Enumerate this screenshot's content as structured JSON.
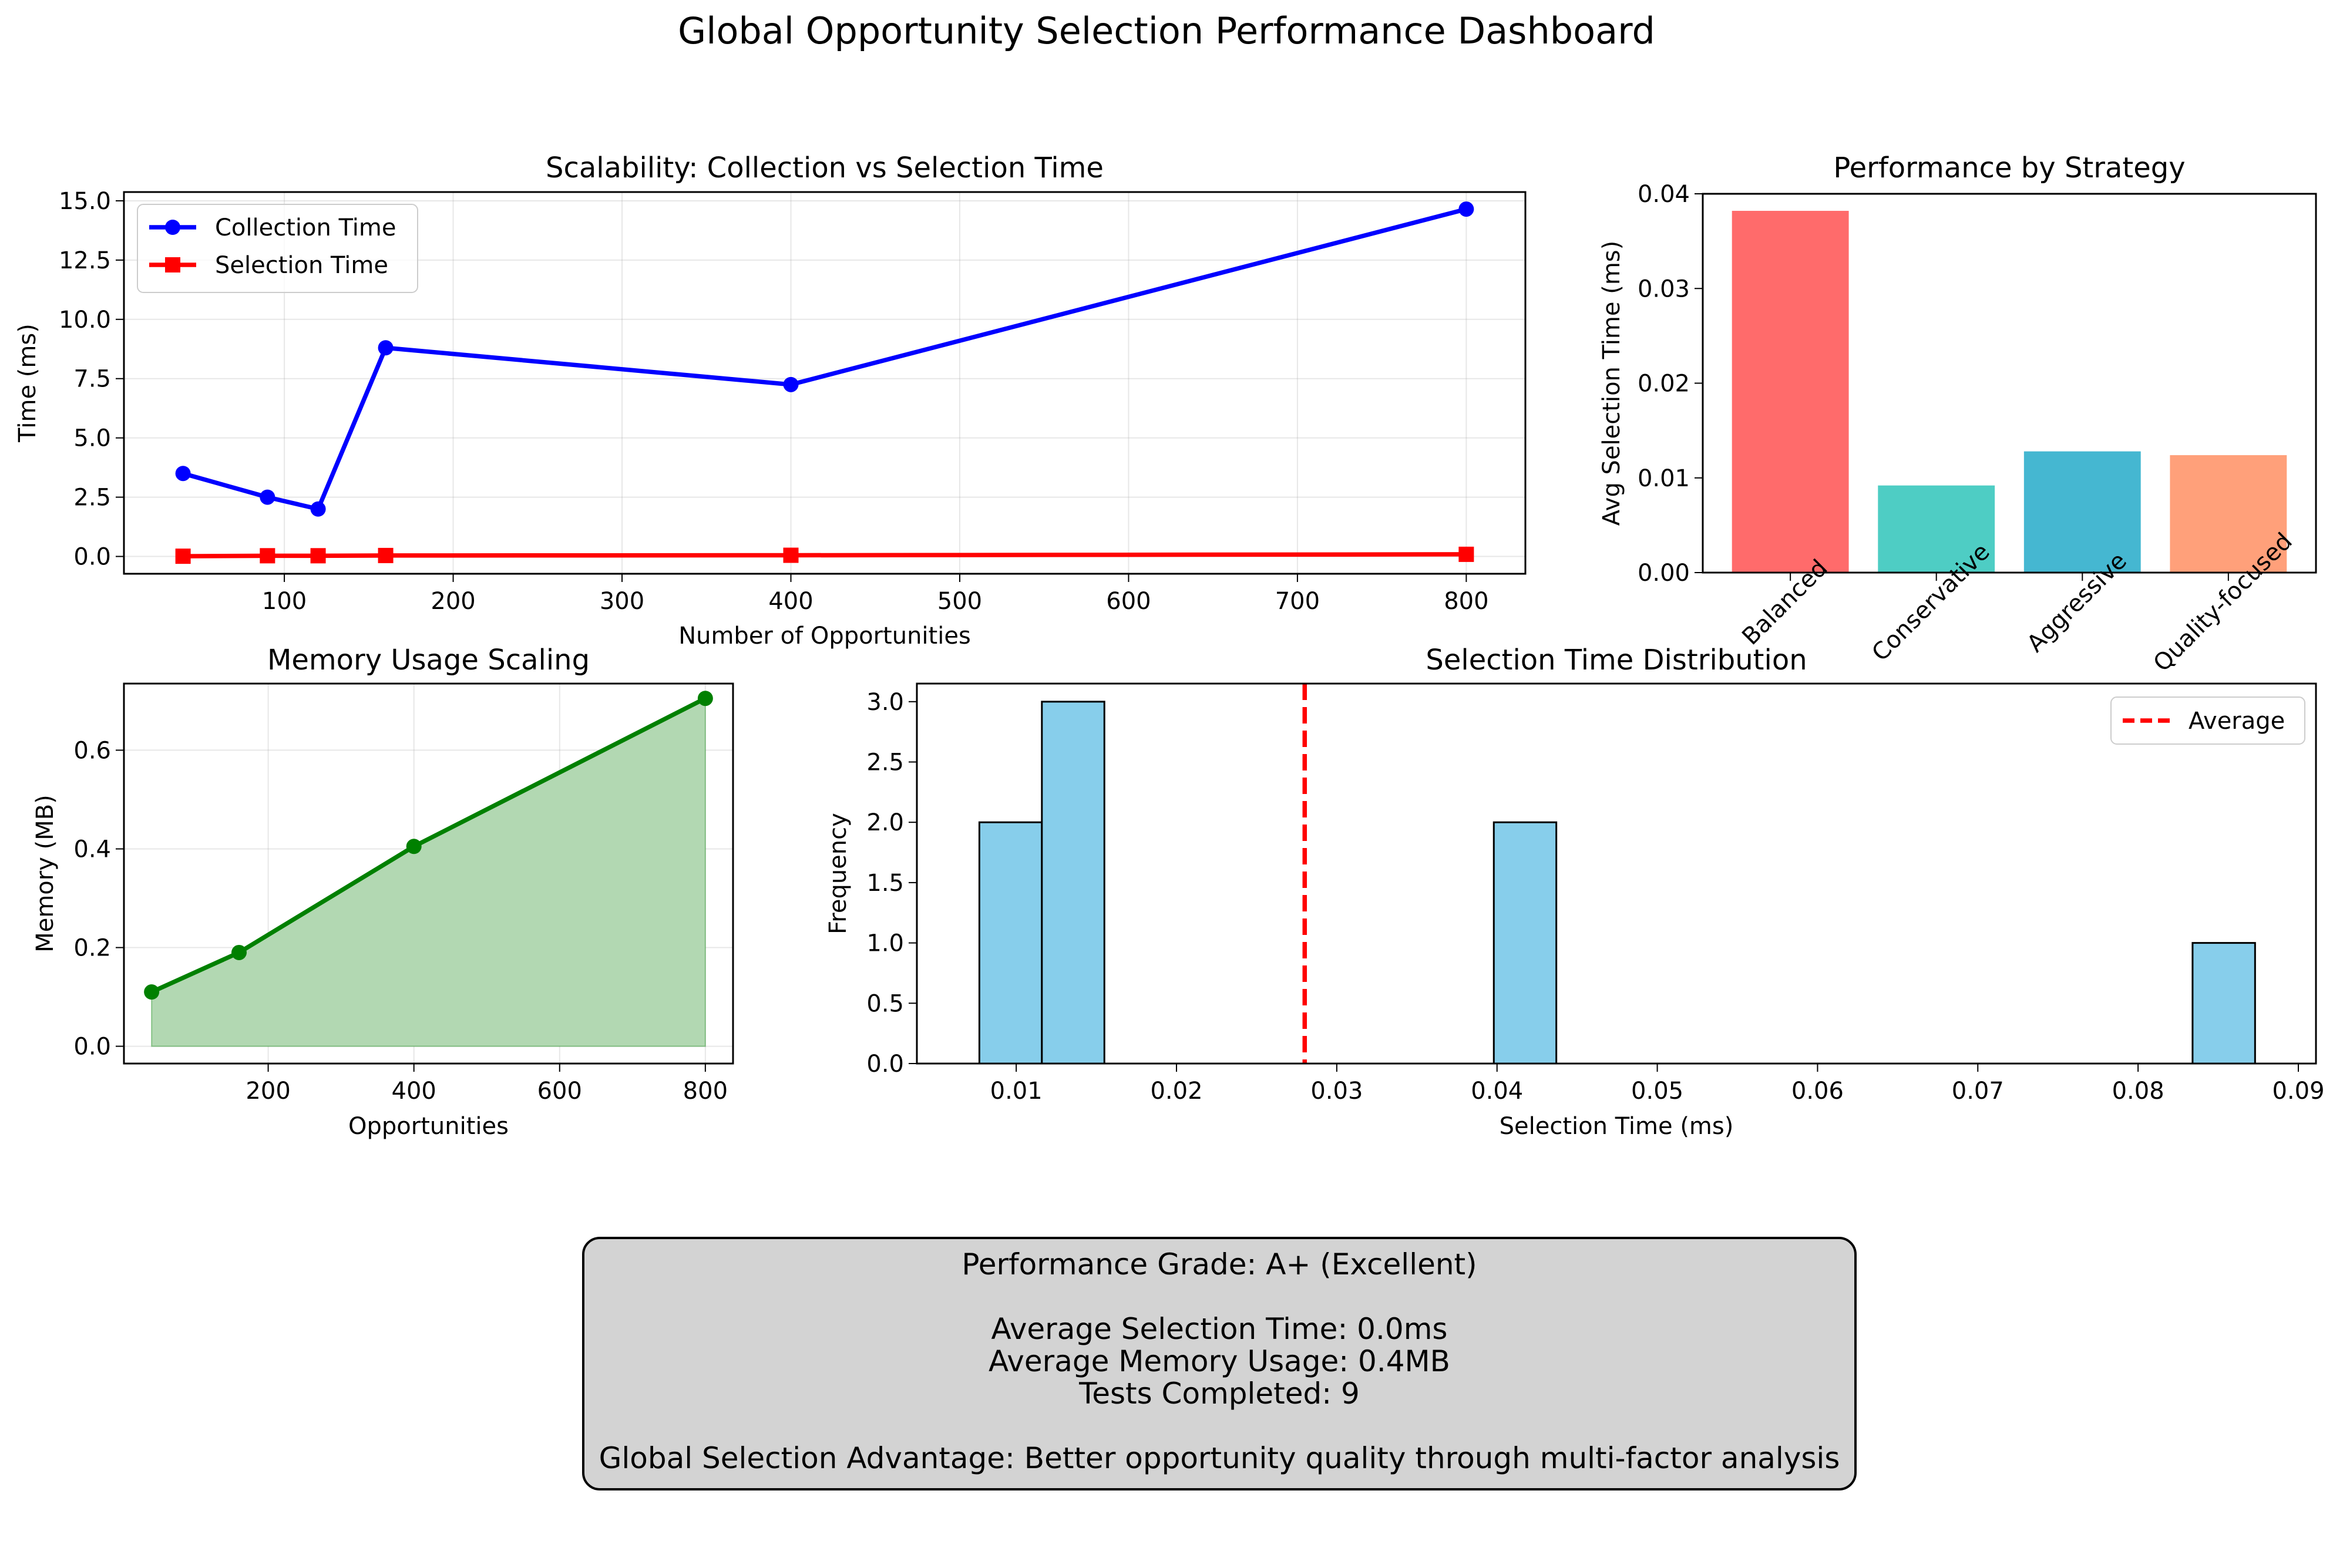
{
  "figure": {
    "title": "Global Opportunity Selection Performance Dashboard"
  },
  "chart_data": [
    {
      "id": "scalability",
      "type": "line",
      "title": "Scalability: Collection vs Selection Time",
      "xlabel": "Number of Opportunities",
      "ylabel": "Time (ms)",
      "xlim": [
        5,
        835
      ],
      "ylim": [
        -0.73,
        15.37
      ],
      "xticks": [
        100,
        200,
        300,
        400,
        500,
        600,
        700,
        800
      ],
      "yticks": [
        0.0,
        2.5,
        5.0,
        7.5,
        10.0,
        12.5,
        15.0
      ],
      "grid": true,
      "legend": "top-left",
      "series": [
        {
          "name": "Collection Time",
          "color": "#0000ff",
          "marker": "circle",
          "x": [
            40,
            90,
            120,
            160,
            400,
            800
          ],
          "y": [
            3.5,
            2.5,
            2.0,
            8.8,
            7.25,
            14.65
          ]
        },
        {
          "name": "Selection Time",
          "color": "#ff0000",
          "marker": "square",
          "x": [
            40,
            90,
            120,
            160,
            400,
            800
          ],
          "y": [
            0.01,
            0.03,
            0.03,
            0.04,
            0.05,
            0.09
          ]
        }
      ]
    },
    {
      "id": "strategy",
      "type": "bar",
      "title": "Performance by Strategy",
      "ylabel": "Avg Selection Time (ms)",
      "categories": [
        "Balanced",
        "Conservative",
        "Aggressive",
        "Quality-focused"
      ],
      "values": [
        0.0382,
        0.0092,
        0.0128,
        0.0124
      ],
      "colors": [
        "#ff6b6b",
        "#4ecdc4",
        "#45b7d1",
        "#ffa07a"
      ],
      "ylim": [
        0,
        0.04
      ],
      "yticks": [
        0.0,
        0.01,
        0.02,
        0.03,
        0.04
      ]
    },
    {
      "id": "memory",
      "type": "area",
      "title": "Memory Usage Scaling",
      "xlabel": "Opportunities",
      "ylabel": "Memory (MB)",
      "xlim": [
        2,
        838
      ],
      "ylim": [
        -0.035,
        0.735
      ],
      "xticks": [
        200,
        400,
        600,
        800
      ],
      "yticks": [
        0.0,
        0.2,
        0.4,
        0.6
      ],
      "grid": true,
      "color": "#008000",
      "fill": "#b2d8b2",
      "x": [
        40,
        160,
        400,
        800
      ],
      "y": [
        0.11,
        0.19,
        0.405,
        0.705
      ]
    },
    {
      "id": "distribution",
      "type": "histogram",
      "title": "Selection Time Distribution",
      "xlabel": "Selection Time (ms)",
      "ylabel": "Frequency",
      "xlim": [
        0.0038,
        0.0911
      ],
      "ylim": [
        0,
        3.15
      ],
      "xticks": [
        0.01,
        0.02,
        0.03,
        0.04,
        0.05,
        0.06,
        0.07,
        0.08,
        0.09
      ],
      "yticks": [
        0.0,
        0.5,
        1.0,
        1.5,
        2.0,
        2.5,
        3.0
      ],
      "bin_width": 0.0039,
      "bins": [
        {
          "x0": 0.0077,
          "count": 2
        },
        {
          "x0": 0.0116,
          "count": 3
        },
        {
          "x0": 0.0398,
          "count": 2
        },
        {
          "x0": 0.0834,
          "count": 1
        }
      ],
      "bar_color": "#87ceeb",
      "average": 0.028,
      "average_label": "Average",
      "average_color": "#ff0000",
      "legend": "top-right"
    }
  ],
  "summary": {
    "grade": "Performance Grade: A+ (Excellent)",
    "avg_selection": "Average Selection Time: 0.0ms",
    "avg_memory": "Average Memory Usage: 0.4MB",
    "tests": "Tests Completed: 9",
    "advantage": "Global Selection Advantage: Better opportunity quality through multi-factor analysis"
  }
}
